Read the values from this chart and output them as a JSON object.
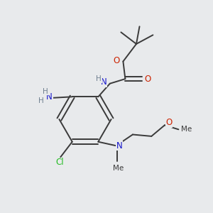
{
  "background_color": "#e8eaec",
  "bond_color": "#3a3a3a",
  "atom_colors": {
    "N": "#1414cc",
    "O": "#cc2200",
    "Cl": "#22bb22",
    "H": "#708090",
    "C": "#3a3a3a"
  },
  "figsize": [
    3.0,
    3.0
  ],
  "dpi": 100
}
